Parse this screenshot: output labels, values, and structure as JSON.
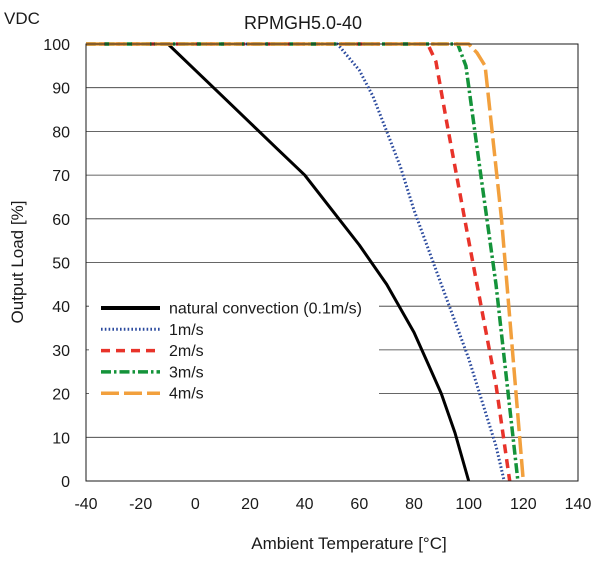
{
  "corner_label": "VDC",
  "chart_data": {
    "type": "line",
    "title": "RPMGH5.0-40",
    "xlabel": "Ambient Temperature [°C]",
    "ylabel": "Output Load [%]",
    "xlim": [
      -40,
      140
    ],
    "ylim": [
      0,
      100
    ],
    "xticks": [
      "-40",
      "-20",
      "0",
      "20",
      "40",
      "60",
      "80",
      "100",
      "120",
      "140"
    ],
    "yticks": [
      "0",
      "10",
      "20",
      "30",
      "40",
      "50",
      "60",
      "70",
      "80",
      "90",
      "100"
    ],
    "grid": "horizontal",
    "legend": "lower-left",
    "series": [
      {
        "name": "natural convection (0.1m/s)",
        "color": "#000000",
        "style": "solid",
        "x": [
          -40,
          -10,
          0,
          10,
          20,
          30,
          40,
          50,
          60,
          70,
          80,
          85,
          90,
          95,
          100
        ],
        "y": [
          100,
          100,
          94,
          88,
          82,
          76,
          70,
          62,
          54,
          45,
          34,
          27,
          20,
          11,
          0
        ]
      },
      {
        "name": "1m/s",
        "color": "#2b4a9e",
        "style": "dotted",
        "x": [
          -40,
          52,
          60,
          65,
          70,
          75,
          80,
          90,
          100,
          110,
          113
        ],
        "y": [
          100,
          100,
          94,
          88,
          80,
          72,
          62,
          45,
          28,
          8,
          0
        ]
      },
      {
        "name": "2m/s",
        "color": "#e8332a",
        "style": "dashed",
        "x": [
          -40,
          85,
          88,
          92,
          100,
          110,
          115
        ],
        "y": [
          100,
          100,
          96,
          82,
          55,
          22,
          0
        ]
      },
      {
        "name": "3m/s",
        "color": "#14933a",
        "style": "dashdot",
        "x": [
          -40,
          96,
          99,
          104,
          110,
          118
        ],
        "y": [
          100,
          100,
          95,
          72,
          45,
          0
        ]
      },
      {
        "name": "4m/s",
        "color": "#f2a03d",
        "style": "longdash",
        "x": [
          -40,
          100,
          103,
          106,
          112,
          120
        ],
        "y": [
          100,
          100,
          98,
          95,
          60,
          0
        ]
      }
    ]
  }
}
